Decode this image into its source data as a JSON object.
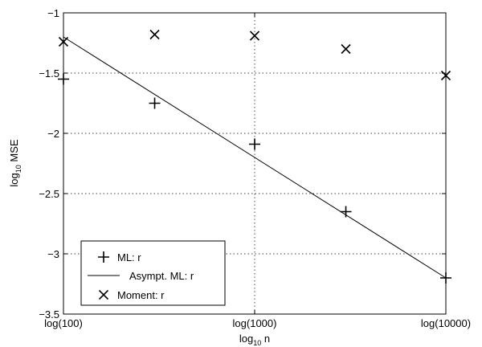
{
  "chart_data": {
    "type": "scatter",
    "xlabel": {
      "main": "log",
      "sub": "10",
      "rest": " n"
    },
    "ylabel": {
      "main": "log",
      "sub": "10",
      "rest": " MSE"
    },
    "xlim": [
      2,
      4
    ],
    "ylim": [
      -3.5,
      -1
    ],
    "x_ticks": [
      {
        "value": 2,
        "label": "log(100)"
      },
      {
        "value": 3,
        "label": "log(1000)"
      },
      {
        "value": 4,
        "label": "log(10000)"
      }
    ],
    "y_ticks": [
      {
        "value": -1,
        "label": "−1"
      },
      {
        "value": -1.5,
        "label": "−1.5"
      },
      {
        "value": -2,
        "label": "−2"
      },
      {
        "value": -2.5,
        "label": "−2.5"
      },
      {
        "value": -3,
        "label": "−3"
      },
      {
        "value": -3.5,
        "label": "−3.5"
      }
    ],
    "grid": true,
    "legend_position": "bottom-left",
    "series": [
      {
        "name": "ML: r",
        "marker": "plus",
        "x": [
          2,
          2.477,
          3,
          3.477,
          4
        ],
        "y": [
          -1.55,
          -1.75,
          -2.09,
          -2.65,
          -3.2
        ]
      },
      {
        "name": "Asympt. ML: r",
        "marker": "line",
        "x": [
          2,
          4
        ],
        "y": [
          -1.2,
          -3.2
        ]
      },
      {
        "name": "Moment: r",
        "marker": "cross",
        "x": [
          2,
          2.477,
          3,
          3.477,
          4
        ],
        "y": [
          -1.24,
          -1.18,
          -1.19,
          -1.3,
          -1.52
        ]
      }
    ]
  }
}
